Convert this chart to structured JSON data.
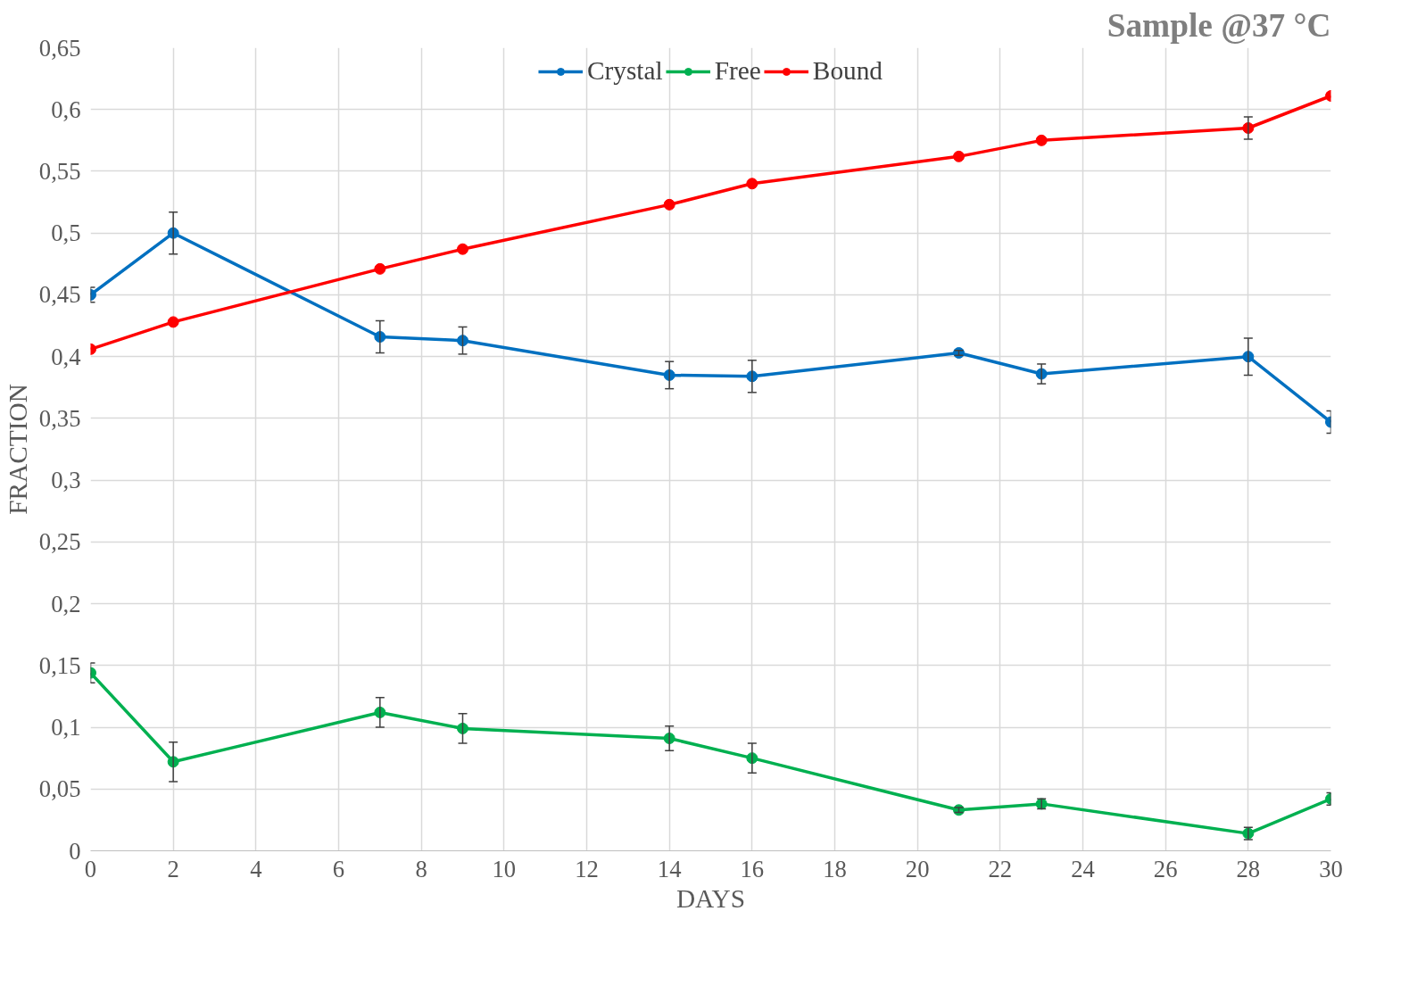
{
  "chart_data": {
    "type": "line",
    "title": "Sample @37 °C",
    "xlabel": "DAYS",
    "ylabel": "FRACTION",
    "x": [
      0,
      2,
      7,
      9,
      14,
      16,
      21,
      23,
      28,
      30
    ],
    "series": [
      {
        "name": "Crystal",
        "color": "#0070c0",
        "values": [
          0.45,
          0.5,
          0.416,
          0.413,
          0.385,
          0.384,
          0.403,
          0.386,
          0.4,
          0.347
        ],
        "errors": [
          0.006,
          0.017,
          0.013,
          0.011,
          0.011,
          0.013,
          0.002,
          0.008,
          0.015,
          0.009
        ]
      },
      {
        "name": "Free",
        "color": "#00b050",
        "values": [
          0.144,
          0.072,
          0.112,
          0.099,
          0.091,
          0.075,
          0.033,
          0.038,
          0.014,
          0.042
        ],
        "errors": [
          0.008,
          0.016,
          0.012,
          0.012,
          0.01,
          0.012,
          0.002,
          0.004,
          0.005,
          0.005
        ]
      },
      {
        "name": "Bound",
        "color": "#ff0000",
        "values": [
          0.406,
          0.428,
          0.471,
          0.487,
          0.523,
          0.54,
          0.562,
          0.575,
          0.585,
          0.611
        ],
        "errors": [
          null,
          null,
          null,
          null,
          null,
          null,
          null,
          null,
          0.009,
          null
        ]
      }
    ],
    "xlim": [
      0,
      30
    ],
    "xticks": [
      0,
      2,
      4,
      6,
      8,
      10,
      12,
      14,
      16,
      18,
      20,
      22,
      24,
      26,
      28,
      30
    ],
    "ylim": [
      0,
      0.65
    ],
    "yticks": [
      0,
      {
        "value": 0.05,
        "label": "0,05"
      },
      {
        "value": 0.1,
        "label": "0,1"
      },
      {
        "value": 0.15,
        "label": "0,15"
      },
      {
        "value": 0.2,
        "label": "0,2"
      },
      {
        "value": 0.25,
        "label": "0,25"
      },
      {
        "value": 0.3,
        "label": "0,3"
      },
      {
        "value": 0.35,
        "label": "0,35"
      },
      {
        "value": 0.4,
        "label": "0,4"
      },
      {
        "value": 0.45,
        "label": "0,45"
      },
      {
        "value": 0.5,
        "label": "0,5"
      },
      {
        "value": 0.55,
        "label": "0,55"
      },
      {
        "value": 0.6,
        "label": "0,6"
      },
      {
        "value": 0.65,
        "label": "0,65"
      }
    ],
    "grid": true,
    "legend": "top",
    "marker": "circle",
    "line_style": "solid"
  }
}
